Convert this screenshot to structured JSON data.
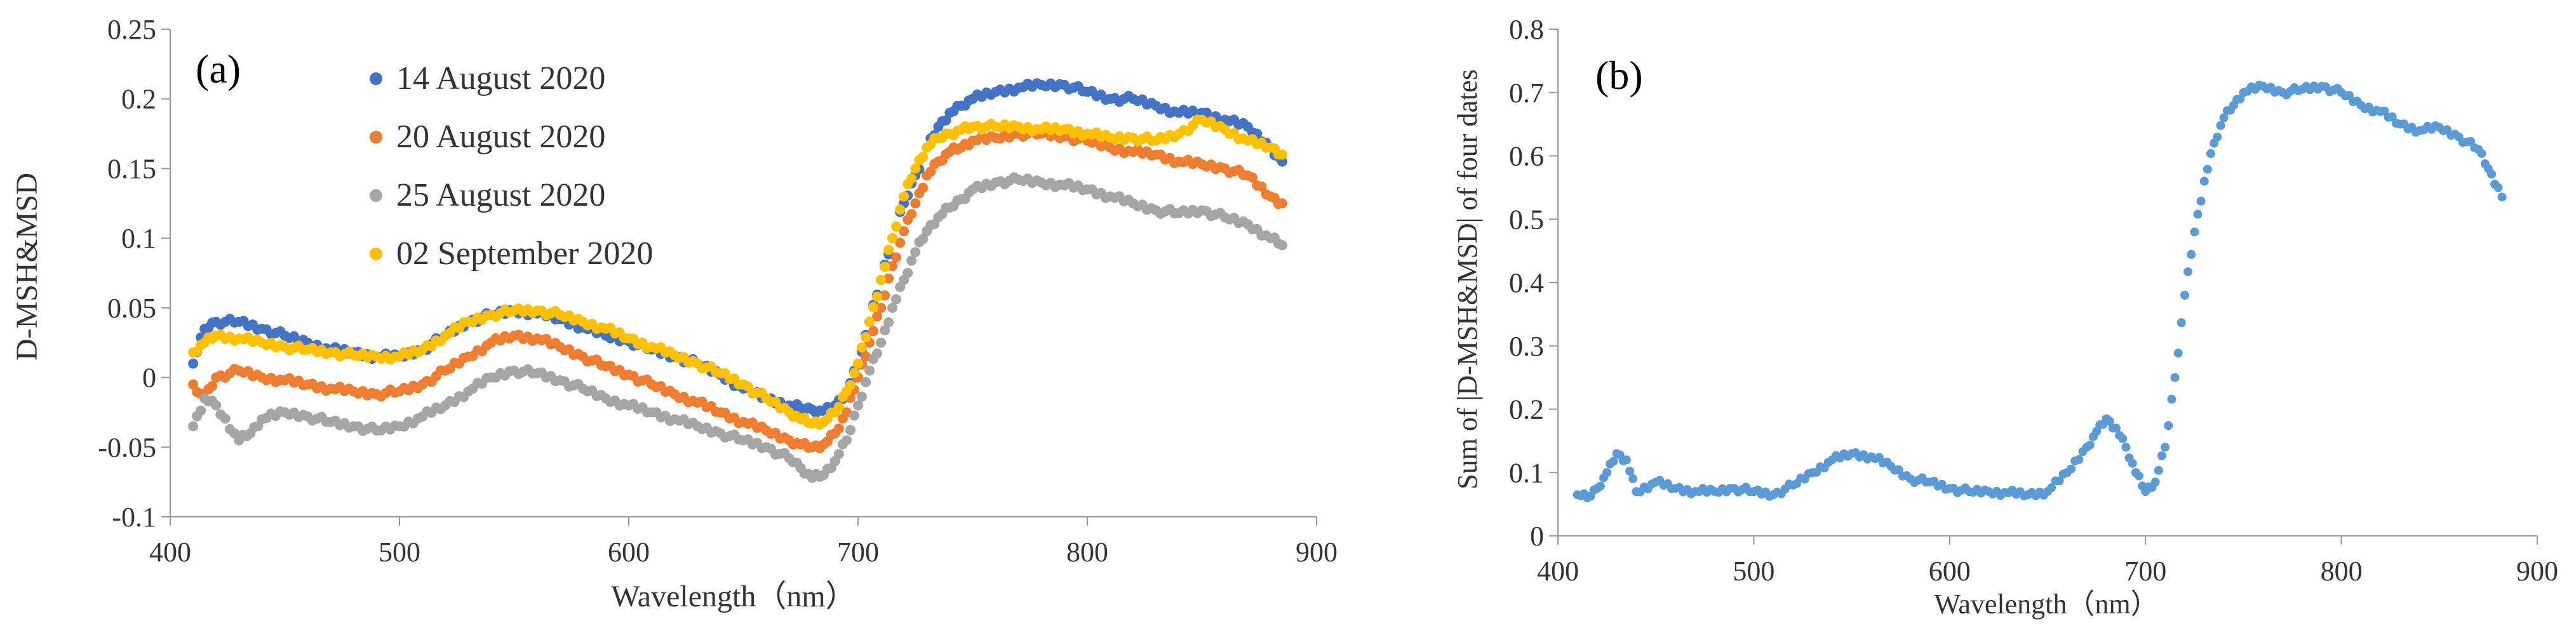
{
  "figure": {
    "panel_a": {
      "tag": "(a)",
      "ylabel": "D-MSH&MSD",
      "xlabel": "Wavelength（nm）",
      "yticks": [
        "-0.1",
        "-0.05",
        "0",
        "0.05",
        "0.1",
        "0.15",
        "0.2",
        "0.25"
      ],
      "xticks": [
        "400",
        "500",
        "600",
        "700",
        "800",
        "900"
      ]
    },
    "panel_b": {
      "tag": "(b)",
      "ylabel": "Sum of |D-MSH&MSD| of four dates",
      "xlabel": "Wavelength（nm）",
      "yticks": [
        "0",
        "0.1",
        "0.2",
        "0.3",
        "0.4",
        "0.5",
        "0.6",
        "0.7",
        "0.8"
      ],
      "xticks": [
        "400",
        "500",
        "600",
        "700",
        "800",
        "900"
      ]
    }
  },
  "colors": {
    "series_1": "#4472c4",
    "series_2": "#ed7d31",
    "series_3": "#a5a5a5",
    "series_4": "#ffc000",
    "sum_series": "#5b9bd5",
    "axis": "#999999"
  },
  "chart_data": [
    {
      "type": "scatter",
      "title": "(a)",
      "xlabel": "Wavelength（nm）",
      "ylabel": "D-MSH&MSD",
      "xlim": [
        400,
        900
      ],
      "ylim": [
        -0.1,
        0.25
      ],
      "grid": false,
      "legend": "top-left",
      "series": [
        {
          "name": "14 August 2020",
          "x": [
            410,
            415,
            420,
            430,
            440,
            450,
            460,
            470,
            480,
            490,
            500,
            510,
            520,
            530,
            540,
            550,
            560,
            570,
            580,
            590,
            600,
            610,
            620,
            630,
            640,
            650,
            660,
            670,
            675,
            680,
            685,
            690,
            695,
            700,
            705,
            710,
            715,
            720,
            725,
            730,
            735,
            740,
            745,
            750,
            760,
            770,
            780,
            790,
            800,
            810,
            820,
            830,
            840,
            850,
            860,
            870,
            880,
            885
          ],
          "y": [
            0.01,
            0.035,
            0.04,
            0.04,
            0.035,
            0.03,
            0.025,
            0.02,
            0.018,
            0.015,
            0.015,
            0.02,
            0.03,
            0.04,
            0.045,
            0.048,
            0.046,
            0.042,
            0.036,
            0.03,
            0.026,
            0.02,
            0.015,
            0.01,
            0.002,
            -0.008,
            -0.015,
            -0.02,
            -0.022,
            -0.023,
            -0.024,
            -0.02,
            -0.01,
            0.01,
            0.04,
            0.07,
            0.1,
            0.125,
            0.145,
            0.165,
            0.18,
            0.19,
            0.195,
            0.2,
            0.205,
            0.208,
            0.21,
            0.21,
            0.205,
            0.2,
            0.2,
            0.195,
            0.19,
            0.19,
            0.185,
            0.18,
            0.165,
            0.155
          ]
        },
        {
          "name": "20 August 2020",
          "x": [
            410,
            415,
            420,
            430,
            440,
            450,
            460,
            470,
            480,
            490,
            500,
            510,
            520,
            530,
            540,
            550,
            560,
            570,
            580,
            590,
            600,
            610,
            620,
            630,
            640,
            650,
            660,
            670,
            675,
            680,
            685,
            690,
            695,
            700,
            705,
            710,
            715,
            720,
            725,
            730,
            735,
            740,
            745,
            750,
            760,
            770,
            780,
            790,
            800,
            810,
            820,
            830,
            840,
            850,
            860,
            870,
            880,
            885
          ],
          "y": [
            -0.005,
            -0.015,
            0.0,
            0.005,
            0.0,
            -0.002,
            -0.005,
            -0.008,
            -0.01,
            -0.012,
            -0.01,
            -0.005,
            0.005,
            0.015,
            0.025,
            0.03,
            0.028,
            0.022,
            0.015,
            0.008,
            0.002,
            -0.005,
            -0.012,
            -0.018,
            -0.025,
            -0.032,
            -0.038,
            -0.045,
            -0.048,
            -0.05,
            -0.048,
            -0.04,
            -0.025,
            0.0,
            0.025,
            0.05,
            0.08,
            0.105,
            0.125,
            0.145,
            0.155,
            0.162,
            0.165,
            0.17,
            0.172,
            0.175,
            0.175,
            0.173,
            0.17,
            0.165,
            0.162,
            0.16,
            0.155,
            0.153,
            0.15,
            0.145,
            0.13,
            0.125
          ]
        },
        {
          "name": "25 August 2020",
          "x": [
            410,
            415,
            420,
            430,
            435,
            440,
            450,
            460,
            470,
            480,
            490,
            500,
            510,
            520,
            530,
            540,
            550,
            560,
            570,
            580,
            590,
            600,
            610,
            620,
            630,
            640,
            650,
            660,
            670,
            675,
            680,
            685,
            690,
            695,
            700,
            705,
            710,
            715,
            720,
            725,
            730,
            735,
            740,
            745,
            750,
            760,
            770,
            780,
            790,
            800,
            810,
            820,
            830,
            840,
            850,
            860,
            870,
            880,
            885
          ],
          "y": [
            -0.035,
            -0.015,
            -0.02,
            -0.045,
            -0.04,
            -0.03,
            -0.025,
            -0.028,
            -0.032,
            -0.035,
            -0.038,
            -0.035,
            -0.028,
            -0.02,
            -0.01,
            0.0,
            0.005,
            0.003,
            -0.002,
            -0.008,
            -0.015,
            -0.02,
            -0.025,
            -0.03,
            -0.035,
            -0.04,
            -0.045,
            -0.05,
            -0.058,
            -0.065,
            -0.072,
            -0.07,
            -0.06,
            -0.045,
            -0.02,
            0.005,
            0.025,
            0.05,
            0.07,
            0.09,
            0.105,
            0.115,
            0.122,
            0.128,
            0.135,
            0.14,
            0.142,
            0.14,
            0.138,
            0.135,
            0.13,
            0.125,
            0.12,
            0.118,
            0.12,
            0.115,
            0.11,
            0.1,
            0.095
          ]
        },
        {
          "name": "02 September 2020",
          "x": [
            410,
            415,
            420,
            430,
            440,
            450,
            460,
            470,
            480,
            490,
            500,
            510,
            520,
            530,
            540,
            550,
            560,
            570,
            580,
            590,
            600,
            610,
            620,
            630,
            640,
            650,
            660,
            670,
            675,
            680,
            685,
            690,
            695,
            700,
            705,
            710,
            715,
            720,
            725,
            730,
            735,
            740,
            745,
            750,
            760,
            770,
            780,
            790,
            800,
            810,
            820,
            830,
            840,
            850,
            860,
            870,
            880,
            885
          ],
          "y": [
            0.018,
            0.025,
            0.03,
            0.028,
            0.025,
            0.022,
            0.02,
            0.018,
            0.016,
            0.015,
            0.015,
            0.02,
            0.03,
            0.04,
            0.045,
            0.048,
            0.048,
            0.045,
            0.04,
            0.035,
            0.028,
            0.022,
            0.016,
            0.01,
            0.003,
            -0.005,
            -0.015,
            -0.025,
            -0.03,
            -0.033,
            -0.032,
            -0.025,
            -0.01,
            0.01,
            0.04,
            0.07,
            0.1,
            0.13,
            0.15,
            0.165,
            0.172,
            0.175,
            0.178,
            0.18,
            0.18,
            0.18,
            0.178,
            0.178,
            0.175,
            0.172,
            0.172,
            0.17,
            0.175,
            0.185,
            0.178,
            0.17,
            0.165,
            0.16
          ]
        }
      ]
    },
    {
      "type": "scatter",
      "title": "(b)",
      "xlabel": "Wavelength（nm）",
      "ylabel": "Sum of |D-MSH&MSD| of four dates",
      "xlim": [
        400,
        900
      ],
      "ylim": [
        0,
        0.8
      ],
      "grid": false,
      "series": [
        {
          "name": "Sum of |D-MSH&MSD| of four dates",
          "x": [
            410,
            415,
            420,
            425,
            430,
            435,
            440,
            450,
            460,
            470,
            480,
            490,
            500,
            510,
            520,
            530,
            540,
            550,
            560,
            570,
            580,
            590,
            600,
            610,
            620,
            630,
            640,
            650,
            660,
            670,
            675,
            680,
            685,
            690,
            695,
            700,
            705,
            710,
            715,
            720,
            725,
            730,
            735,
            740,
            745,
            750,
            760,
            770,
            780,
            790,
            800,
            810,
            820,
            830,
            840,
            850,
            860,
            870,
            875,
            880,
            882
          ],
          "y": [
            0.065,
            0.06,
            0.075,
            0.1,
            0.13,
            0.12,
            0.07,
            0.085,
            0.075,
            0.07,
            0.07,
            0.075,
            0.07,
            0.065,
            0.08,
            0.1,
            0.12,
            0.13,
            0.125,
            0.11,
            0.09,
            0.085,
            0.075,
            0.07,
            0.07,
            0.068,
            0.065,
            0.07,
            0.1,
            0.14,
            0.165,
            0.185,
            0.17,
            0.14,
            0.1,
            0.07,
            0.085,
            0.14,
            0.25,
            0.38,
            0.48,
            0.56,
            0.62,
            0.66,
            0.68,
            0.7,
            0.71,
            0.7,
            0.705,
            0.71,
            0.7,
            0.68,
            0.67,
            0.65,
            0.64,
            0.645,
            0.63,
            0.61,
            0.58,
            0.55,
            0.535
          ]
        }
      ]
    }
  ]
}
